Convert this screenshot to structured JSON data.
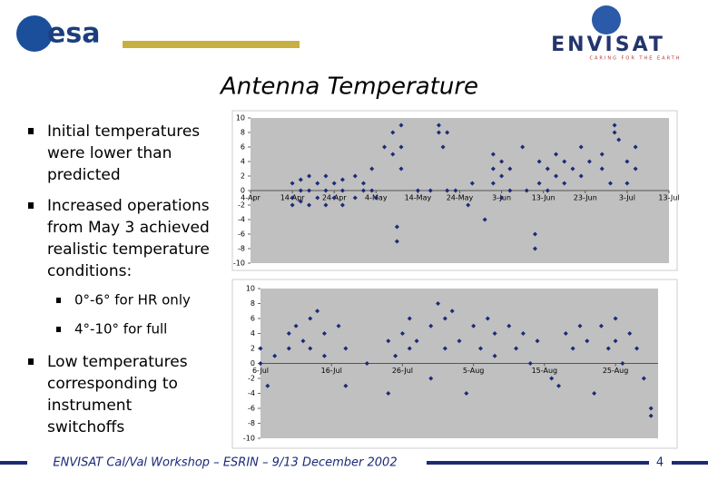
{
  "logos": {
    "esa": "esa",
    "envisat": "ENVISAT",
    "tagline": "CARING FOR THE EARTH"
  },
  "header": {
    "title": "Antenna Temperature"
  },
  "bullets": [
    {
      "lines": [
        "Initial temperatures",
        "were lower than",
        "predicted"
      ]
    },
    {
      "lines": [
        "Increased operations",
        "from May 3 achieved",
        "realistic temperature",
        "conditions:"
      ],
      "sub": [
        "0°-6° for HR only",
        "4°-10° for full"
      ]
    },
    {
      "lines": [
        "Low temperatures",
        "corresponding to",
        "instrument",
        "switchoffs"
      ]
    }
  ],
  "footer": {
    "text": "ENVISAT Cal/Val Workshop – ESRIN – 9/13 December 2002",
    "page": "4"
  },
  "charts": [
    {
      "type": "scatter",
      "color": "#1c2a78",
      "xlim": [
        94,
        194
      ],
      "ylim": [
        -10,
        10
      ],
      "yticks": [
        -10,
        -8,
        -6,
        -4,
        -2,
        0,
        2,
        4,
        6,
        8,
        10
      ],
      "xticks": [
        {
          "value": 94,
          "label": "4-Apr"
        },
        {
          "value": 104,
          "label": "14-Apr"
        },
        {
          "value": 114,
          "label": "24-Apr"
        },
        {
          "value": 124,
          "label": "4-May"
        },
        {
          "value": 134,
          "label": "14-May"
        },
        {
          "value": 144,
          "label": "24-May"
        },
        {
          "value": 154,
          "label": "3-Jun"
        },
        {
          "value": 164,
          "label": "13-Jun"
        },
        {
          "value": 174,
          "label": "23-Jun"
        },
        {
          "value": 184,
          "label": "3-Jul"
        },
        {
          "value": 194,
          "label": "13-Jul"
        }
      ],
      "x": [
        104,
        104,
        104,
        106,
        106,
        106,
        108,
        108,
        108,
        110,
        110,
        112,
        112,
        112,
        114,
        114,
        116,
        116,
        116,
        119,
        119,
        121,
        121,
        123,
        123,
        124,
        126,
        128,
        128,
        129,
        129,
        130,
        130,
        130,
        134,
        137,
        139,
        139,
        140,
        141,
        141,
        143,
        146,
        147,
        150,
        152,
        152,
        152,
        154,
        154,
        154,
        156,
        156,
        159,
        160,
        162,
        162,
        163,
        163,
        165,
        165,
        167,
        167,
        169,
        169,
        171,
        173,
        173,
        175,
        178,
        178,
        180,
        181,
        181,
        182,
        184,
        184,
        186,
        186
      ],
      "y": [
        1,
        -1,
        -2,
        0,
        1.5,
        -1.5,
        2,
        0,
        -2,
        1,
        -1,
        2,
        0,
        -2,
        1,
        -1,
        1.5,
        0,
        -2,
        2,
        -1,
        1,
        0,
        3,
        0,
        -1,
        6,
        8,
        5,
        -5,
        -7,
        9,
        6,
        3,
        0,
        0,
        8,
        9,
        6,
        8,
        0,
        0,
        -2,
        1,
        -4,
        5,
        3,
        1,
        4,
        2,
        -1,
        3,
        0,
        6,
        0,
        -6,
        -8,
        4,
        1,
        3,
        0,
        5,
        2,
        4,
        1,
        3,
        6,
        2,
        4,
        5,
        3,
        1,
        8,
        9,
        7,
        4,
        1,
        6,
        3
      ]
    },
    {
      "type": "scatter",
      "color": "#1c2a78",
      "xlim": [
        187,
        243
      ],
      "ylim": [
        -10,
        10
      ],
      "yticks": [
        -10,
        -8,
        -6,
        -4,
        -2,
        0,
        2,
        4,
        6,
        8,
        10
      ],
      "xticks": [
        {
          "value": 187,
          "label": "6-Jul"
        },
        {
          "value": 197,
          "label": "16-Jul"
        },
        {
          "value": 207,
          "label": "26-Jul"
        },
        {
          "value": 217,
          "label": "5-Aug"
        },
        {
          "value": 227,
          "label": "15-Aug"
        },
        {
          "value": 237,
          "label": "25-Aug"
        }
      ],
      "x": [
        187,
        187,
        188,
        189,
        191,
        191,
        192,
        193,
        194,
        194,
        195,
        196,
        196,
        198,
        199,
        199,
        202,
        205,
        205,
        206,
        207,
        208,
        208,
        209,
        211,
        211,
        212,
        213,
        213,
        214,
        215,
        216,
        217,
        218,
        219,
        220,
        220,
        222,
        223,
        224,
        225,
        226,
        228,
        229,
        230,
        231,
        232,
        233,
        234,
        235,
        236,
        237,
        237,
        238,
        239,
        240,
        241,
        242,
        242
      ],
      "y": [
        2,
        0,
        -3,
        1,
        4,
        2,
        5,
        3,
        6,
        2,
        7,
        4,
        1,
        5,
        -3,
        2,
        0,
        3,
        -4,
        1,
        4,
        6,
        2,
        3,
        -2,
        5,
        8,
        6,
        2,
        7,
        3,
        -4,
        5,
        2,
        6,
        4,
        1,
        5,
        2,
        4,
        0,
        3,
        -2,
        -3,
        4,
        2,
        5,
        3,
        -4,
        5,
        2,
        6,
        3,
        0,
        4,
        2,
        -2,
        -6,
        -7
      ]
    }
  ]
}
